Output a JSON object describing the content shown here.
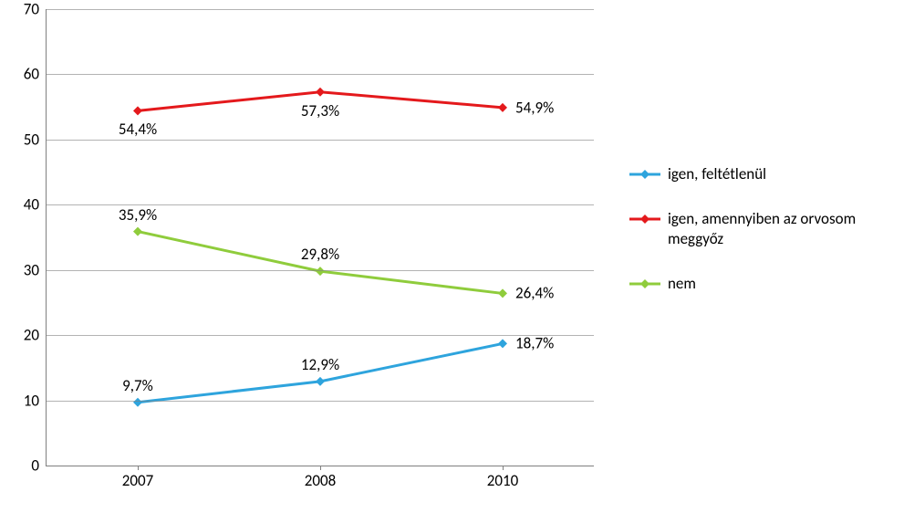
{
  "chart": {
    "type": "line",
    "background_color": "#ffffff",
    "grid_color": "#808080",
    "label_color": "#000000",
    "label_fontsize": 17,
    "xlabels": [
      "2007",
      "2008",
      "2010"
    ],
    "ylim": [
      0,
      70
    ],
    "ytick_step": 10,
    "yticks": [
      0,
      10,
      20,
      30,
      40,
      50,
      60,
      70
    ],
    "series": [
      {
        "key": "igen_feltetlenul",
        "label": "igen, feltétlenül",
        "color": "#2ea4dd",
        "line_width": 3,
        "marker": "diamond",
        "marker_size": 8,
        "values": [
          9.7,
          12.9,
          18.7
        ],
        "value_labels": [
          "9,7%",
          "12,9%",
          "18,7%"
        ],
        "label_position": "above",
        "last_label_position": "right"
      },
      {
        "key": "igen_orvosom",
        "label": "igen, amennyiben az orvosom meggyőz",
        "color": "#e4191c",
        "line_width": 3,
        "marker": "diamond",
        "marker_size": 8,
        "values": [
          54.4,
          57.3,
          54.9
        ],
        "value_labels": [
          "54,4%",
          "57,3%",
          "54,9%"
        ],
        "label_position": "below",
        "last_label_position": "right"
      },
      {
        "key": "nem",
        "label": "nem",
        "color": "#8fcc3c",
        "line_width": 3,
        "marker": "diamond",
        "marker_size": 8,
        "values": [
          35.9,
          29.8,
          26.4
        ],
        "value_labels": [
          "35,9%",
          "29,8%",
          "26,4%"
        ],
        "label_position": "above",
        "last_label_position": "right"
      }
    ]
  }
}
